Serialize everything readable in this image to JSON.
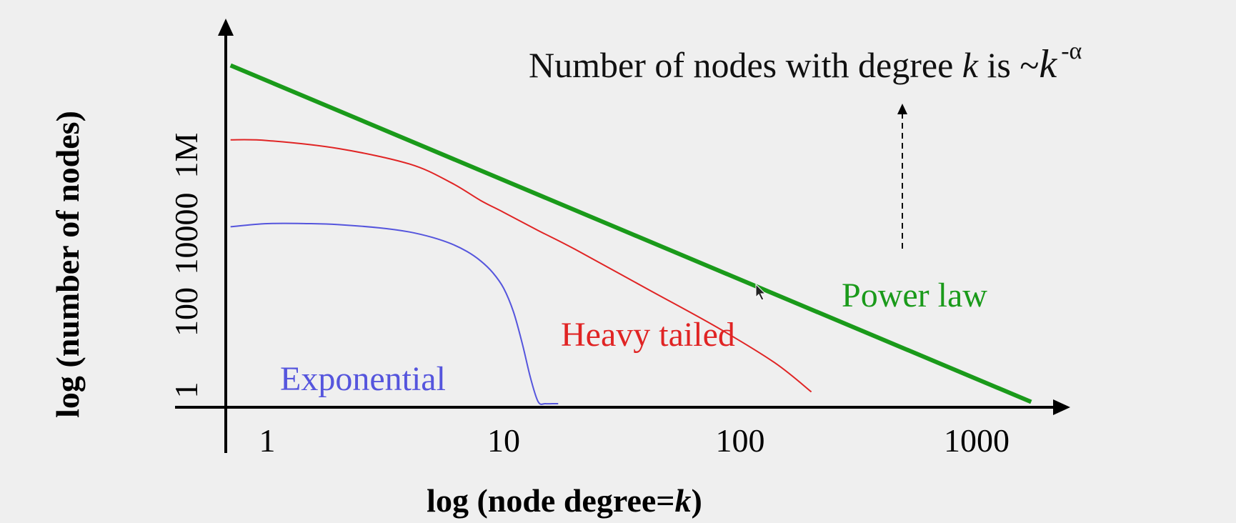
{
  "chart_data": {
    "type": "line",
    "x_scale": "log",
    "y_scale": "log",
    "xlabel_prefix": "log (node degree=",
    "xlabel_var": "k",
    "xlabel_suffix": ")",
    "ylabel": "log (number of nodes)",
    "x_ticks": [
      "1",
      "10",
      "100",
      "1000"
    ],
    "y_ticks": [
      "1",
      "100",
      "10000",
      "1M"
    ],
    "annotation": {
      "prefix": "Number of nodes with degree ",
      "var": "k",
      "middle": " is ~",
      "base": "k",
      "exponent": "-α"
    },
    "grid": false,
    "series": [
      {
        "name": "Power law",
        "color": "#1a9a1a",
        "x": [
          0.7,
          1700
        ],
        "y": [
          200000000,
          0.5
        ]
      },
      {
        "name": "Heavy tailed",
        "color": "#e02424",
        "x": [
          0.7,
          1,
          2,
          4,
          6,
          8,
          10,
          14,
          20,
          40,
          80,
          140,
          200
        ],
        "y": [
          2500000,
          2400000,
          1500000,
          600000,
          200000,
          70000,
          35000,
          12000,
          4000,
          400,
          40,
          5,
          0.9
        ]
      },
      {
        "name": "Exponential",
        "color": "#5555dd",
        "x": [
          0.7,
          1,
          1.5,
          2,
          3,
          4,
          5,
          6,
          7,
          8,
          9,
          10,
          11,
          12,
          13,
          14,
          15,
          16,
          17
        ],
        "y": [
          15000,
          18000,
          18000,
          17000,
          14000,
          11000,
          8000,
          5500,
          3500,
          2000,
          1000,
          400,
          100,
          15,
          2,
          0.5,
          0.1,
          0.03,
          0.01
        ]
      }
    ]
  }
}
